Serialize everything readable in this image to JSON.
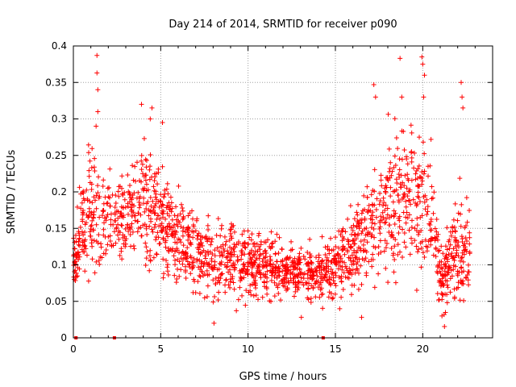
{
  "chart_data": {
    "type": "scatter",
    "title": "Day 214 of 2014, SRMTID for receiver p090",
    "xlabel": "GPS time / hours",
    "ylabel": "SRMTID / TECUs",
    "xlim": [
      0,
      24
    ],
    "ylim": [
      0,
      0.4
    ],
    "grid": true,
    "x_ticks": [
      0,
      5,
      10,
      15,
      20
    ],
    "x_tick_labels": [
      "0",
      "5",
      "10",
      "15",
      "20"
    ],
    "y_ticks": [
      0,
      0.05,
      0.1,
      0.15,
      0.2,
      0.25,
      0.3,
      0.35,
      0.4
    ],
    "y_tick_labels": [
      "0",
      "0.05",
      "0.1",
      "0.15",
      "0.2",
      "0.25",
      "0.3",
      "0.35",
      "0.4"
    ],
    "marker": "plus",
    "color": "#ff0000",
    "zero_markers_x": [
      0.15,
      2.35,
      14.3
    ],
    "density_profile": {
      "x_hours": [
        0,
        0.5,
        1,
        1.5,
        2,
        3,
        4,
        5,
        6,
        7,
        8,
        9,
        10,
        11,
        12,
        13,
        14,
        15,
        16,
        17,
        18,
        19,
        20,
        20.5,
        21,
        22,
        22.7
      ],
      "center": [
        0.1,
        0.15,
        0.17,
        0.16,
        0.16,
        0.17,
        0.19,
        0.17,
        0.13,
        0.12,
        0.1,
        0.11,
        0.1,
        0.1,
        0.09,
        0.09,
        0.09,
        0.1,
        0.12,
        0.16,
        0.18,
        0.19,
        0.19,
        0.17,
        0.08,
        0.12,
        0.12
      ],
      "spread": [
        0.03,
        0.06,
        0.09,
        0.06,
        0.05,
        0.05,
        0.08,
        0.06,
        0.05,
        0.05,
        0.05,
        0.04,
        0.04,
        0.04,
        0.03,
        0.03,
        0.03,
        0.04,
        0.05,
        0.07,
        0.08,
        0.08,
        0.09,
        0.06,
        0.04,
        0.06,
        0.07
      ]
    },
    "outliers": [
      {
        "x": 1.35,
        "y": 0.387
      },
      {
        "x": 1.35,
        "y": 0.363
      },
      {
        "x": 1.4,
        "y": 0.34
      },
      {
        "x": 1.4,
        "y": 0.31
      },
      {
        "x": 1.3,
        "y": 0.29
      },
      {
        "x": 3.9,
        "y": 0.32
      },
      {
        "x": 4.5,
        "y": 0.315
      },
      {
        "x": 4.4,
        "y": 0.3
      },
      {
        "x": 5.1,
        "y": 0.295
      },
      {
        "x": 17.2,
        "y": 0.347
      },
      {
        "x": 17.3,
        "y": 0.33
      },
      {
        "x": 18.7,
        "y": 0.383
      },
      {
        "x": 18.8,
        "y": 0.33
      },
      {
        "x": 19.95,
        "y": 0.385
      },
      {
        "x": 20.0,
        "y": 0.375
      },
      {
        "x": 20.1,
        "y": 0.36
      },
      {
        "x": 20.05,
        "y": 0.33
      },
      {
        "x": 22.2,
        "y": 0.35
      },
      {
        "x": 22.25,
        "y": 0.33
      },
      {
        "x": 22.3,
        "y": 0.315
      },
      {
        "x": 21.1,
        "y": 0.03
      },
      {
        "x": 8.05,
        "y": 0.02
      },
      {
        "x": 13.05,
        "y": 0.028
      },
      {
        "x": 16.5,
        "y": 0.028
      },
      {
        "x": 0.05,
        "y": 0.08
      }
    ]
  }
}
